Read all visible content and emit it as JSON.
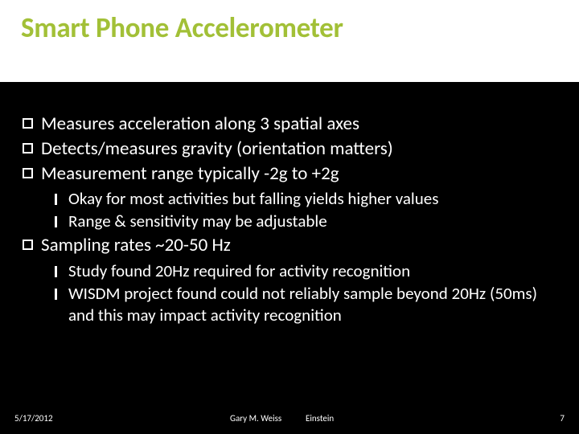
{
  "title": "Smart Phone Accelerometer",
  "title_color": "#a2c037",
  "background_color": "#000000",
  "title_bg_color": "#ffffff",
  "text_color": "#ffffff",
  "title_fontsize": 35,
  "body_fontsize_lvl1": 23,
  "body_fontsize_lvl2": 21,
  "bullets": [
    {
      "level": 1,
      "text": "Measures acceleration along 3 spatial axes"
    },
    {
      "level": 1,
      "text": "Detects/measures gravity (orientation matters)"
    },
    {
      "level": 1,
      "text": "Measurement range typically -2g to +2g"
    },
    {
      "level": 2,
      "text": "Okay for most activities but falling yields higher values"
    },
    {
      "level": 2,
      "text": "Range & sensitivity may be adjustable"
    },
    {
      "level": 1,
      "text": "Sampling rates ~20-50 Hz"
    },
    {
      "level": 2,
      "text": "Study found 20Hz required for activity recognition"
    },
    {
      "level": 2,
      "text": "WISDM project found could not reliably sample beyond 20Hz (50ms) and this may impact activity recognition"
    }
  ],
  "footer": {
    "date": "5/17/2012",
    "author": "Gary M. Weiss",
    "affiliation": "Einstein",
    "page": "7"
  }
}
